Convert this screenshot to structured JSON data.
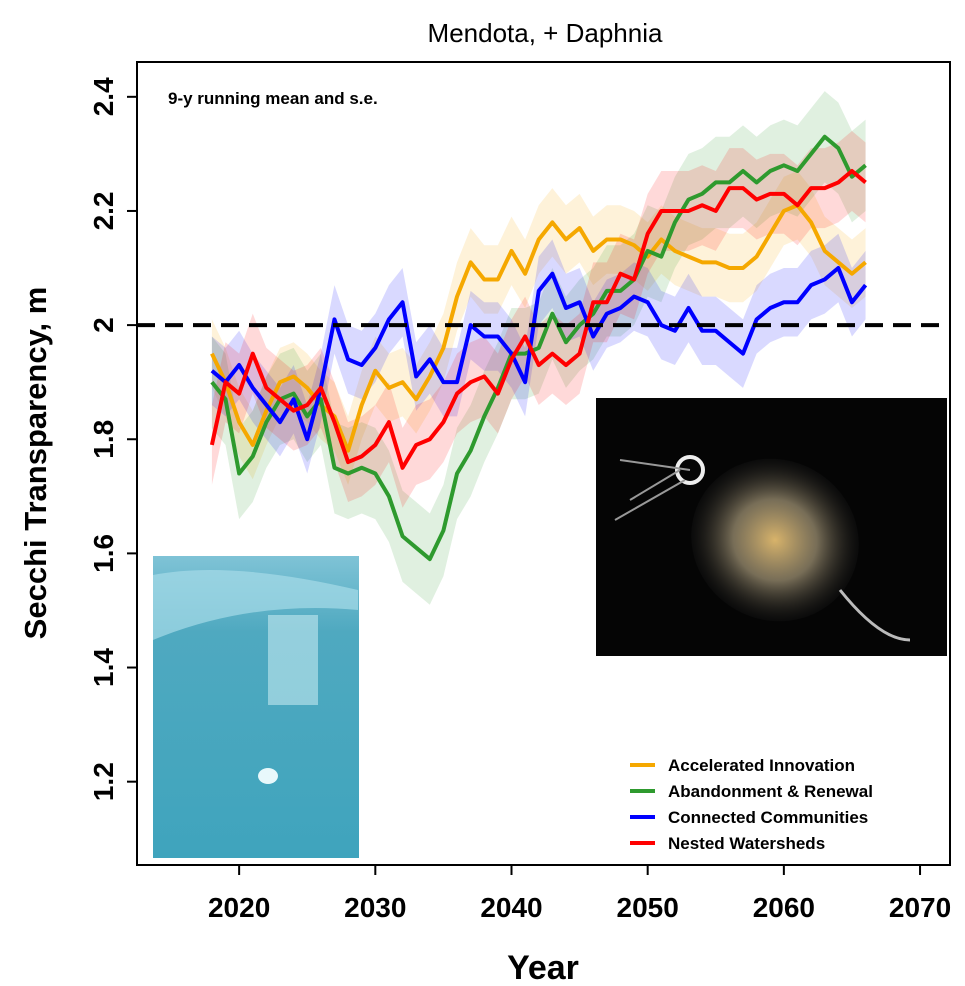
{
  "chart_data": {
    "type": "line",
    "title": "Mendota, + Daphnia",
    "annotation": "9-y running mean and s.e.",
    "x_label": "Year",
    "y_label": "Secchi Transparency, m",
    "x": [
      2018,
      2019,
      2020,
      2021,
      2022,
      2023,
      2024,
      2025,
      2026,
      2027,
      2028,
      2029,
      2030,
      2031,
      2032,
      2033,
      2034,
      2035,
      2036,
      2037,
      2038,
      2039,
      2040,
      2041,
      2042,
      2043,
      2044,
      2045,
      2046,
      2047,
      2048,
      2049,
      2050,
      2051,
      2052,
      2053,
      2054,
      2055,
      2056,
      2057,
      2058,
      2059,
      2060,
      2061,
      2062,
      2063,
      2064,
      2065,
      2066
    ],
    "series": [
      {
        "name": "Accelerated Innovation",
        "color": "#f5a800",
        "se": 0.06,
        "values": [
          1.95,
          1.9,
          1.83,
          1.79,
          1.85,
          1.9,
          1.91,
          1.89,
          1.86,
          1.84,
          1.78,
          1.86,
          1.92,
          1.89,
          1.9,
          1.87,
          1.91,
          1.96,
          2.05,
          2.11,
          2.08,
          2.08,
          2.13,
          2.09,
          2.15,
          2.18,
          2.15,
          2.17,
          2.13,
          2.15,
          2.15,
          2.14,
          2.12,
          2.15,
          2.13,
          2.12,
          2.11,
          2.11,
          2.1,
          2.1,
          2.12,
          2.16,
          2.2,
          2.21,
          2.18,
          2.13,
          2.11,
          2.09,
          2.11
        ]
      },
      {
        "name": "Abandonment & Renewal",
        "color": "#2e9a2e",
        "se": 0.08,
        "values": [
          1.9,
          1.87,
          1.74,
          1.77,
          1.83,
          1.87,
          1.88,
          1.84,
          1.87,
          1.75,
          1.74,
          1.75,
          1.74,
          1.7,
          1.63,
          1.61,
          1.59,
          1.64,
          1.74,
          1.78,
          1.84,
          1.89,
          1.95,
          1.95,
          1.96,
          2.02,
          1.97,
          2.0,
          2.02,
          2.06,
          2.06,
          2.08,
          2.13,
          2.12,
          2.18,
          2.22,
          2.23,
          2.25,
          2.25,
          2.27,
          2.25,
          2.27,
          2.28,
          2.27,
          2.3,
          2.33,
          2.31,
          2.26,
          2.28
        ]
      },
      {
        "name": "Connected Communities",
        "color": "#0000ff",
        "se": 0.06,
        "values": [
          1.92,
          1.9,
          1.93,
          1.89,
          1.86,
          1.83,
          1.87,
          1.8,
          1.89,
          2.01,
          1.94,
          1.93,
          1.96,
          2.01,
          2.04,
          1.91,
          1.94,
          1.9,
          1.9,
          2.0,
          1.98,
          1.98,
          1.95,
          1.9,
          2.06,
          2.09,
          2.03,
          2.04,
          1.98,
          2.02,
          2.03,
          2.05,
          2.04,
          2.0,
          1.99,
          2.03,
          1.99,
          1.99,
          1.97,
          1.95,
          2.01,
          2.03,
          2.04,
          2.04,
          2.07,
          2.08,
          2.1,
          2.04,
          2.07
        ]
      },
      {
        "name": "Nested Watersheds",
        "color": "#ff0000",
        "se": 0.07,
        "values": [
          1.79,
          1.9,
          1.88,
          1.95,
          1.89,
          1.87,
          1.85,
          1.86,
          1.89,
          1.83,
          1.76,
          1.77,
          1.79,
          1.83,
          1.75,
          1.79,
          1.8,
          1.83,
          1.88,
          1.9,
          1.91,
          1.88,
          1.94,
          1.98,
          1.93,
          1.95,
          1.93,
          1.95,
          2.04,
          2.04,
          2.09,
          2.08,
          2.16,
          2.2,
          2.2,
          2.2,
          2.21,
          2.2,
          2.24,
          2.24,
          2.22,
          2.23,
          2.23,
          2.21,
          2.24,
          2.24,
          2.25,
          2.27,
          2.25
        ]
      }
    ],
    "hline": 2.0,
    "xlim": [
      2012.5,
      2072.2
    ],
    "ylim": [
      1.054,
      2.461
    ],
    "xticks": [
      2020,
      2030,
      2040,
      2050,
      2060,
      2070
    ],
    "yticks": [
      1.2,
      1.4,
      1.6,
      1.8,
      2.0,
      2.2,
      2.4
    ],
    "legend": "bottom-right"
  }
}
